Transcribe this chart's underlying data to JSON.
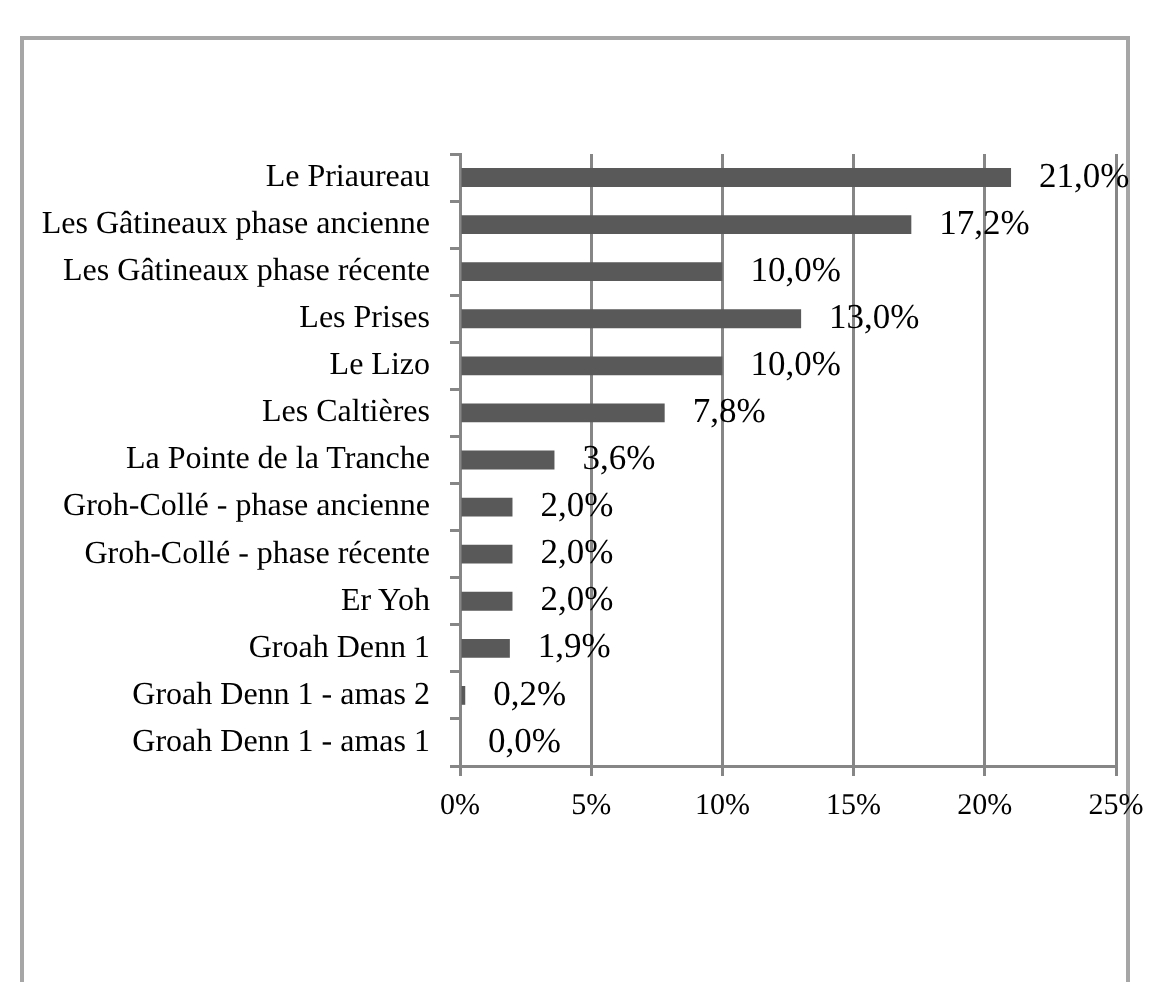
{
  "chart_data": {
    "type": "bar",
    "orientation": "horizontal",
    "categories": [
      "Le Priaureau",
      "Les Gâtineaux phase ancienne",
      "Les Gâtineaux phase récente",
      "Les Prises",
      "Le Lizo",
      "Les Caltières",
      "La Pointe de la Tranche",
      "Groh-Collé - phase ancienne",
      "Groh-Collé - phase récente",
      "Er Yoh",
      "Groah Denn 1",
      "Groah Denn 1 - amas 2",
      "Groah Denn 1 - amas 1"
    ],
    "values": [
      21.0,
      17.2,
      10.0,
      13.0,
      10.0,
      7.8,
      3.6,
      2.0,
      2.0,
      2.0,
      1.9,
      0.2,
      0.0
    ],
    "value_labels": [
      "21,0%",
      "17,2%",
      "10,0%",
      "13,0%",
      "10,0%",
      "7,8%",
      "3,6%",
      "2,0%",
      "2,0%",
      "2,0%",
      "1,9%",
      "0,2%",
      "0,0%"
    ],
    "color": "#595959",
    "xlim": [
      0,
      25
    ],
    "xticks": [
      {
        "value": 0,
        "label": "0%"
      },
      {
        "value": 5,
        "label": "5%"
      },
      {
        "value": 10,
        "label": "10%"
      },
      {
        "value": 15,
        "label": "15%"
      },
      {
        "value": 20,
        "label": "20%"
      },
      {
        "value": 25,
        "label": "25%"
      }
    ],
    "grid": "x"
  }
}
